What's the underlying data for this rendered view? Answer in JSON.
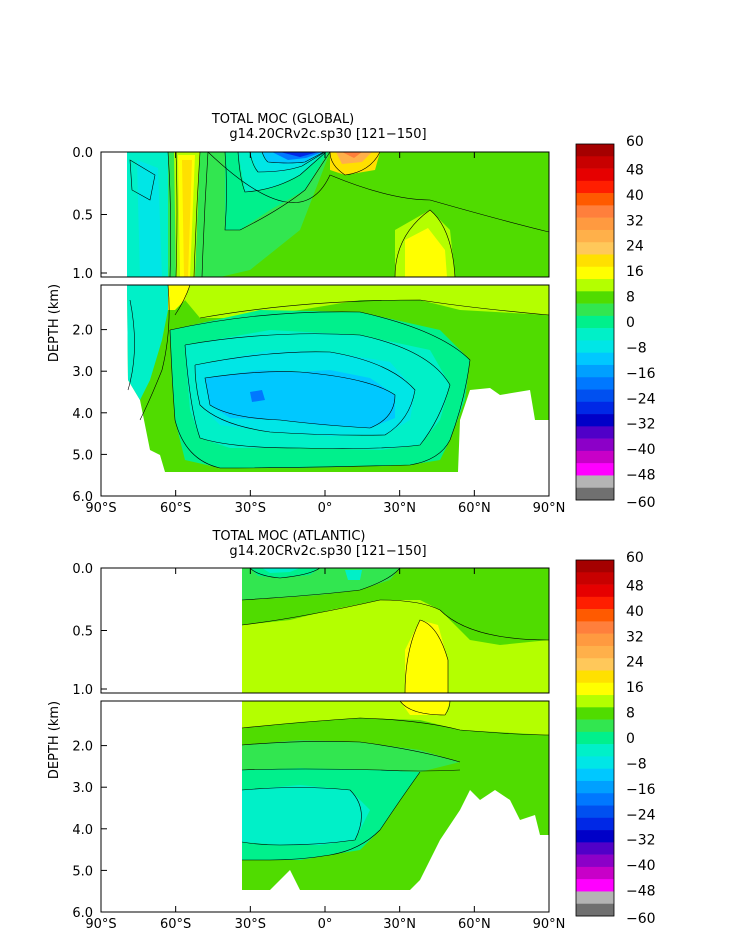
{
  "chart_data": [
    {
      "type": "heatmap",
      "title": "TOTAL MOC (GLOBAL)",
      "subtitle": "g14.20CRv2c.sp30 [121−150]",
      "xlabel": "",
      "ylabel": "DEPTH (km)",
      "xlim": [
        -90,
        90
      ],
      "ylim": [
        6.0,
        0.0
      ],
      "upper_panel_depth_range": [
        0.0,
        1.0
      ],
      "lower_panel_depth_range": [
        1.0,
        6.0
      ],
      "x_ticks": [
        "90°S",
        "60°S",
        "30°S",
        "0°",
        "30°N",
        "60°N",
        "90°N"
      ],
      "y_ticks_upper": [
        "0.0",
        "0.5",
        "1.0"
      ],
      "y_ticks_lower": [
        "2.0",
        "3.0",
        "4.0",
        "5.0",
        "6.0"
      ],
      "contour_interval": 4,
      "features": [
        {
          "lat": -48,
          "depth": 0.6,
          "value": 16
        },
        {
          "lat": -15,
          "depth": 0.05,
          "value": -36
        },
        {
          "lat": 5,
          "depth": 0.05,
          "value": 24
        },
        {
          "lat": 38,
          "depth": 0.9,
          "value": 16
        },
        {
          "lat": -25,
          "depth": 3.7,
          "value": -20
        },
        {
          "lat": 20,
          "depth": 3.9,
          "value": -20
        }
      ]
    },
    {
      "type": "heatmap",
      "title": "TOTAL MOC (ATLANTIC)",
      "subtitle": "g14.20CRv2c.sp30 [121−150]",
      "xlabel": "",
      "ylabel": "DEPTH (km)",
      "xlim": [
        -90,
        90
      ],
      "ylim": [
        6.0,
        0.0
      ],
      "upper_panel_depth_range": [
        0.0,
        1.0
      ],
      "lower_panel_depth_range": [
        1.0,
        6.0
      ],
      "x_ticks": [
        "90°S",
        "60°S",
        "30°S",
        "0°",
        "30°N",
        "60°N",
        "90°N"
      ],
      "y_ticks_upper": [
        "0.0",
        "0.5",
        "1.0"
      ],
      "y_ticks_lower": [
        "2.0",
        "3.0",
        "4.0",
        "5.0",
        "6.0"
      ],
      "contour_interval": 4,
      "features": [
        {
          "lat": 42,
          "depth": 0.8,
          "value": 16
        },
        {
          "lat": 20,
          "depth": 1.8,
          "value": 4
        },
        {
          "lat": 5,
          "depth": 3.8,
          "value": -8
        }
      ]
    }
  ],
  "colorbar": {
    "labels": [
      "60",
      "48",
      "40",
      "32",
      "24",
      "16",
      "8",
      "0",
      "−8",
      "−16",
      "−24",
      "−32",
      "−40",
      "−48",
      "−60"
    ],
    "colors": [
      "#a50000",
      "#c80000",
      "#e60000",
      "#ff1e00",
      "#ff5a00",
      "#ff7f3c",
      "#ff9a40",
      "#ffb04a",
      "#ffc85a",
      "#ffe000",
      "#ffff00",
      "#b4ff00",
      "#50dc00",
      "#32e650",
      "#00f08c",
      "#00f0c8",
      "#00e6e6",
      "#00c8ff",
      "#00a0ff",
      "#0078ff",
      "#0050f0",
      "#0028e6",
      "#0000c8",
      "#5000c8",
      "#8c00c8",
      "#c800c8",
      "#ff00ff",
      "#b4b4b4",
      "#707070"
    ]
  }
}
